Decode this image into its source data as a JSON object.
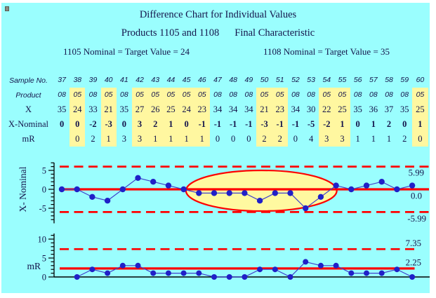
{
  "titles": {
    "line1": "Difference Chart for Individual Values",
    "products": "Products 1105 and 1108",
    "characteristic": "Final Characteristic",
    "nominal_1105": "1105 Nominal = Target Value = 24",
    "nominal_1108": "1108 Nominal = Target Value = 35"
  },
  "table": {
    "row_labels": [
      "Sample No.",
      "Product",
      "X",
      "X-Nominal",
      "mR"
    ],
    "sample_no": [
      "37",
      "38",
      "39",
      "40",
      "41",
      "42",
      "43",
      "44",
      "45",
      "46",
      "47",
      "48",
      "49",
      "50",
      "51",
      "52",
      "53",
      "54",
      "55",
      "56",
      "57",
      "58",
      "59",
      "60"
    ],
    "product": [
      "08",
      "05",
      "08",
      "05",
      "08",
      "05",
      "05",
      "05",
      "05",
      "05",
      "08",
      "08",
      "08",
      "05",
      "05",
      "08",
      "08",
      "05",
      "05",
      "08",
      "08",
      "08",
      "08",
      "05"
    ],
    "x": [
      "35",
      "24",
      "33",
      "21",
      "35",
      "27",
      "26",
      "25",
      "24",
      "23",
      "34",
      "34",
      "34",
      "21",
      "23",
      "34",
      "30",
      "22",
      "25",
      "35",
      "36",
      "37",
      "35",
      "25"
    ],
    "x_nominal": [
      "0",
      "0",
      "-2",
      "-3",
      "0",
      "3",
      "2",
      "1",
      "0",
      "-1",
      "-1",
      "-1",
      "-1",
      "-3",
      "-1",
      "-1",
      "-5",
      "-2",
      "1",
      "0",
      "1",
      "2",
      "0",
      "1"
    ],
    "mr": [
      "",
      "0",
      "2",
      "1",
      "3",
      "3",
      "1",
      "1",
      "1",
      "1",
      "0",
      "0",
      "0",
      "2",
      "2",
      "0",
      "4",
      "3",
      "3",
      "1",
      "1",
      "1",
      "2",
      "0"
    ],
    "highlighted_product": "05",
    "highlight_color": "#FFF7A0"
  },
  "chart_data": [
    {
      "type": "line",
      "name": "individuals-difference-chart",
      "ylabel": "X- Nominal",
      "x": [
        37,
        38,
        39,
        40,
        41,
        42,
        43,
        44,
        45,
        46,
        47,
        48,
        49,
        50,
        51,
        52,
        53,
        54,
        55,
        56,
        57,
        58,
        59,
        60
      ],
      "values": [
        0,
        0,
        -2,
        -3,
        0,
        3,
        2,
        1,
        0,
        -1,
        -1,
        -1,
        -1,
        -3,
        -1,
        -1,
        -5,
        -2,
        1,
        0,
        1,
        2,
        0,
        1
      ],
      "center_line": 0.0,
      "ucl": 5.99,
      "lcl": -5.99,
      "center_label": "0.0",
      "ucl_label": "5.99",
      "lcl_label": "-5.99",
      "yticks": [
        5,
        0,
        -5
      ],
      "ylim": [
        -8,
        7
      ],
      "annotation": {
        "shape": "ellipse",
        "meaning": "run of points below center line",
        "center_sample": 50.1,
        "center_value": -0.37,
        "rx_samples": 4.95,
        "ry_values": 5.37,
        "fill": "#FFF9A0",
        "stroke": "#FF0000"
      }
    },
    {
      "type": "line",
      "name": "moving-range-chart",
      "ylabel": "mR",
      "x": [
        38,
        39,
        40,
        41,
        42,
        43,
        44,
        45,
        46,
        47,
        48,
        49,
        50,
        51,
        52,
        53,
        54,
        55,
        56,
        57,
        58,
        59,
        60
      ],
      "values": [
        0,
        2,
        1,
        3,
        3,
        1,
        1,
        1,
        1,
        0,
        0,
        0,
        2,
        2,
        0,
        4,
        3,
        3,
        1,
        1,
        1,
        2,
        0
      ],
      "center_line": 2.25,
      "ucl": 7.35,
      "center_label": "2.25",
      "ucl_label": "7.35",
      "yticks": [
        10,
        5,
        0
      ],
      "ylim": [
        0,
        11
      ]
    }
  ],
  "colors": {
    "background": "#9AFEFE",
    "highlight_yellow": "#FFF7A0",
    "control_red": "#FF0000",
    "point_blue": "#2020C8",
    "line_blue": "#4040CC",
    "text": "#14144B"
  }
}
